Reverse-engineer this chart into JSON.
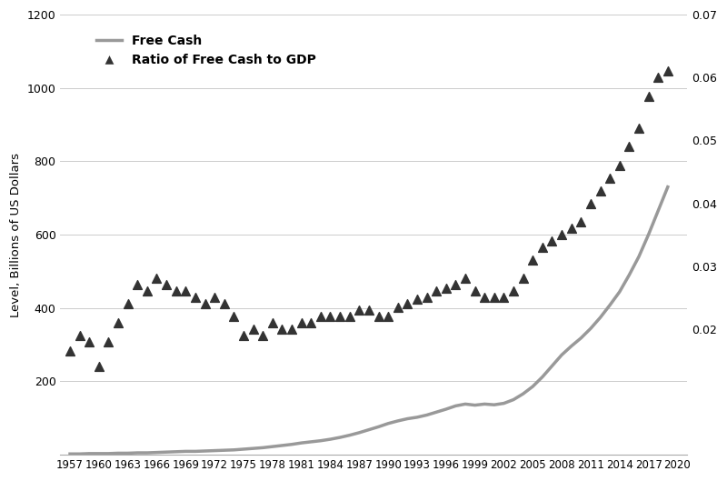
{
  "ylabel_left": "Level, Billions of US Dollars",
  "line_color": "#999999",
  "scatter_color": "#333333",
  "background_color": "#ffffff",
  "grid_color": "#cccccc",
  "years": [
    1957,
    1958,
    1959,
    1960,
    1961,
    1962,
    1963,
    1964,
    1965,
    1966,
    1967,
    1968,
    1969,
    1970,
    1971,
    1972,
    1973,
    1974,
    1975,
    1976,
    1977,
    1978,
    1979,
    1980,
    1981,
    1982,
    1983,
    1984,
    1985,
    1986,
    1987,
    1988,
    1989,
    1990,
    1991,
    1992,
    1993,
    1994,
    1995,
    1996,
    1997,
    1998,
    1999,
    2000,
    2001,
    2002,
    2003,
    2004,
    2005,
    2006,
    2007,
    2008,
    2009,
    2010,
    2011,
    2012,
    2013,
    2014,
    2015,
    2016,
    2017,
    2018,
    2019
  ],
  "free_cash": [
    2,
    2,
    3,
    3,
    3,
    4,
    4,
    5,
    5,
    6,
    7,
    8,
    9,
    9,
    10,
    11,
    12,
    13,
    15,
    17,
    19,
    22,
    25,
    28,
    32,
    35,
    38,
    42,
    47,
    53,
    60,
    68,
    76,
    85,
    92,
    98,
    102,
    108,
    116,
    124,
    133,
    138,
    135,
    138,
    136,
    140,
    150,
    166,
    186,
    212,
    242,
    272,
    296,
    318,
    344,
    374,
    408,
    444,
    490,
    540,
    600,
    665,
    730
  ],
  "ratio_gdp": [
    0.0165,
    0.019,
    0.018,
    0.014,
    0.018,
    0.021,
    0.024,
    0.027,
    0.026,
    0.028,
    0.027,
    0.026,
    0.026,
    0.025,
    0.024,
    0.025,
    0.024,
    0.022,
    0.019,
    0.02,
    0.019,
    0.021,
    0.02,
    0.02,
    0.021,
    0.021,
    0.022,
    0.022,
    0.022,
    0.022,
    0.023,
    0.023,
    0.022,
    0.022,
    0.0235,
    0.024,
    0.0248,
    0.025,
    0.026,
    0.0265,
    0.027,
    0.028,
    0.026,
    0.025,
    0.025,
    0.025,
    0.026,
    0.028,
    0.031,
    0.033,
    0.034,
    0.035,
    0.036,
    0.037,
    0.04,
    0.042,
    0.044,
    0.046,
    0.049,
    0.052,
    0.057,
    0.06,
    0.061
  ],
  "xlim": [
    1956,
    2021
  ],
  "ylim_left": [
    0,
    1200
  ],
  "ylim_right": [
    0,
    0.07
  ],
  "yticks_left": [
    200,
    400,
    600,
    800,
    1000,
    1200
  ],
  "yticks_right": [
    0.02,
    0.03,
    0.04,
    0.05,
    0.06,
    0.07
  ],
  "xticks": [
    1957,
    1960,
    1963,
    1966,
    1969,
    1972,
    1975,
    1978,
    1981,
    1984,
    1987,
    1990,
    1993,
    1996,
    1999,
    2002,
    2005,
    2008,
    2011,
    2014,
    2017,
    2020
  ],
  "legend_labels": [
    "Free Cash",
    "Ratio of Free Cash to GDP"
  ],
  "legend_fontsize": 10
}
